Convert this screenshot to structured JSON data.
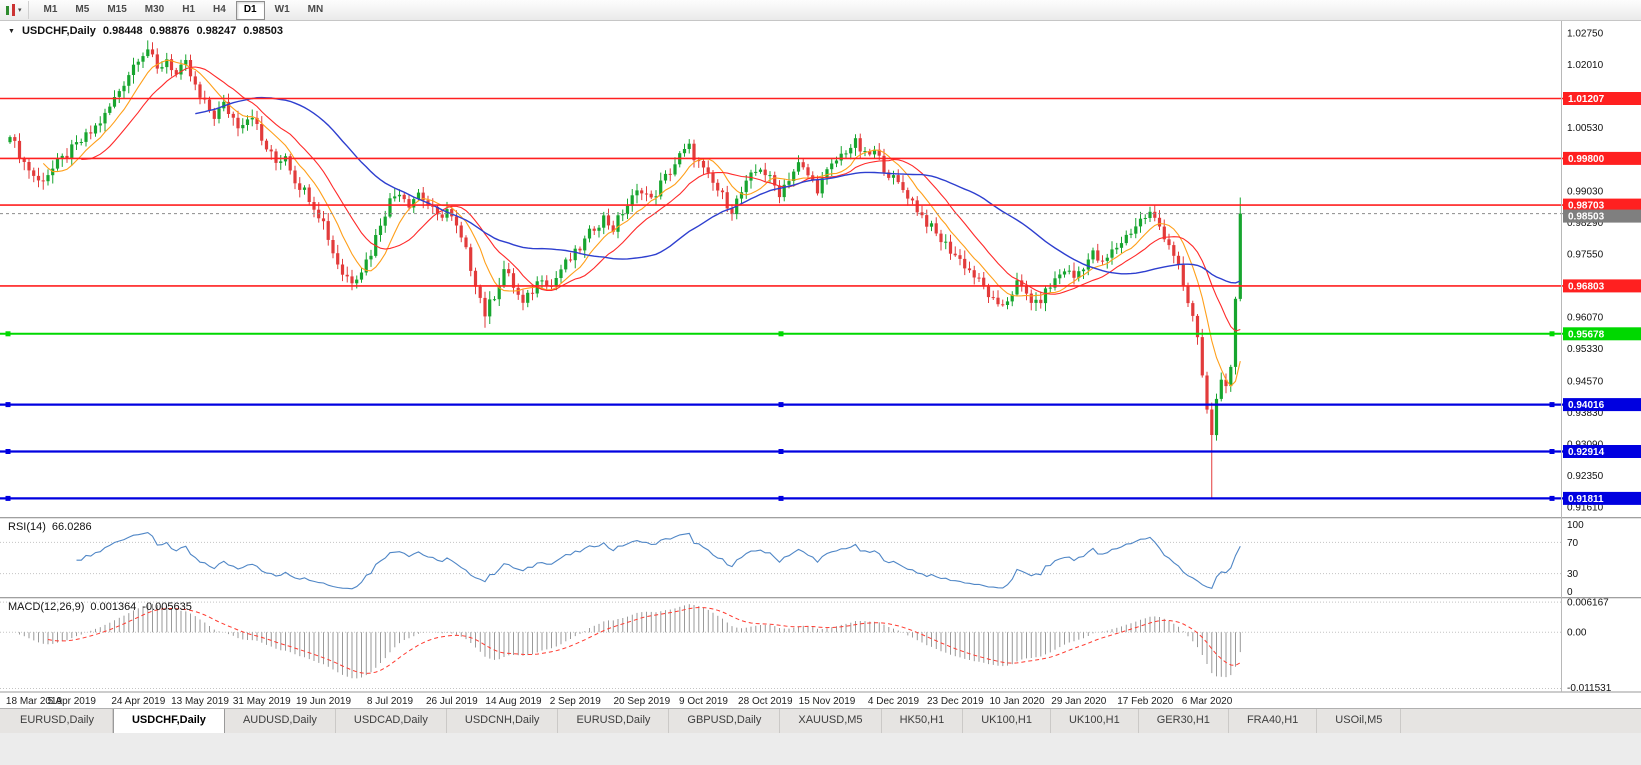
{
  "colors": {
    "bull": "#17a52f",
    "bear": "#e23b3b",
    "ma_fast": "#ff9f1a",
    "ma_mid": "#ff2a2a",
    "ma_slow": "#2e3fcf",
    "hline_red": "#ff2020",
    "hline_green": "#00d800",
    "hline_blue": "#0000e0",
    "rsi_line": "#4f86c6",
    "macd_hist": "#9a9a9a",
    "macd_signal": "#ff3b30",
    "current_price_badge": "#7f7f7f"
  },
  "toolbar": {
    "timeframes": [
      "M1",
      "M5",
      "M15",
      "M30",
      "H1",
      "H4",
      "D1",
      "W1",
      "MN"
    ],
    "active_timeframe": "D1"
  },
  "price_pane": {
    "symbol_title": "USDCHF,Daily",
    "open": "0.98448",
    "high": "0.98876",
    "low": "0.98247",
    "close": "0.98503",
    "current_price_label": "0.98503",
    "axis_tick_labels": [
      "1.02750",
      "1.02010",
      "1.00530",
      "0.99030",
      "0.98290",
      "0.97550",
      "0.96070",
      "0.95330",
      "0.94570",
      "0.93830",
      "0.93090",
      "0.92350",
      "0.91610"
    ]
  },
  "rsi_pane": {
    "name": "RSI(14)",
    "value": "66.0286",
    "axis_labels": [
      "100",
      "70",
      "30",
      "0"
    ],
    "levels": [
      70,
      30
    ]
  },
  "macd_pane": {
    "name": "MACD(12,26,9)",
    "value_main": "0.001364",
    "value_signal": "-0.005635",
    "axis_labels": [
      "0.006167",
      "0.00",
      "-0.011531"
    ]
  },
  "date_axis": [
    "18 Mar 2019",
    "5 Apr 2019",
    "24 Apr 2019",
    "13 May 2019",
    "31 May 2019",
    "19 Jun 2019",
    "8 Jul 2019",
    "26 Jul 2019",
    "14 Aug 2019",
    "2 Sep 2019",
    "20 Sep 2019",
    "9 Oct 2019",
    "28 Oct 2019",
    "15 Nov 2019",
    "4 Dec 2019",
    "23 Dec 2019",
    "10 Jan 2020",
    "29 Jan 2020",
    "17 Feb 2020",
    "6 Mar 2020"
  ],
  "tabs": {
    "active_index": 1,
    "items": [
      "EURUSD,Daily",
      "USDCHF,Daily",
      "AUDUSD,Daily",
      "USDCAD,Daily",
      "USDCNH,Daily",
      "EURUSD,Daily",
      "GBPUSD,Daily",
      "XAUUSD,M5",
      "HK50,H1",
      "UK100,H1",
      "UK100,H1",
      "GER30,H1",
      "FRA40,H1",
      "USOil,M5"
    ]
  },
  "chart_data": {
    "type": "candlestick",
    "title": "USDCHF,Daily",
    "y_min": 0.91375,
    "y_max": 1.0305,
    "num_candles": 260,
    "close_waypoints": [
      [
        0,
        1.003
      ],
      [
        3,
        0.997
      ],
      [
        6,
        0.9925
      ],
      [
        9,
        0.9955
      ],
      [
        13,
        1.0
      ],
      [
        17,
        1.004
      ],
      [
        20,
        1.008
      ],
      [
        23,
        1.014
      ],
      [
        27,
        1.022
      ],
      [
        29,
        1.0238
      ],
      [
        31,
        1.0185
      ],
      [
        33,
        1.0215
      ],
      [
        35,
        1.0175
      ],
      [
        37,
        1.02
      ],
      [
        40,
        1.012
      ],
      [
        43,
        1.008
      ],
      [
        45,
        1.0105
      ],
      [
        48,
        1.006
      ],
      [
        51,
        1.0085
      ],
      [
        53,
        1.002
      ],
      [
        56,
        0.997
      ],
      [
        58,
        0.999
      ],
      [
        60,
        0.993
      ],
      [
        63,
        0.989
      ],
      [
        66,
        0.983
      ],
      [
        68,
        0.976
      ],
      [
        70,
        0.971
      ],
      [
        72,
        0.9695
      ],
      [
        74,
        0.972
      ],
      [
        76,
        0.976
      ],
      [
        78,
        0.983
      ],
      [
        80,
        0.988
      ],
      [
        82,
        0.9905
      ],
      [
        84,
        0.9875
      ],
      [
        86,
        0.99
      ],
      [
        88,
        0.987
      ],
      [
        90,
        0.984
      ],
      [
        92,
        0.986
      ],
      [
        94,
        0.9815
      ],
      [
        96,
        0.976
      ],
      [
        98,
        0.969
      ],
      [
        100,
        0.9615
      ],
      [
        102,
        0.966
      ],
      [
        104,
        0.972
      ],
      [
        106,
        0.968
      ],
      [
        108,
        0.9635
      ],
      [
        110,
        0.967
      ],
      [
        112,
        0.9705
      ],
      [
        114,
        0.968
      ],
      [
        116,
        0.972
      ],
      [
        119,
        0.9755
      ],
      [
        121,
        0.9785
      ],
      [
        123,
        0.982
      ],
      [
        125,
        0.984
      ],
      [
        127,
        0.9815
      ],
      [
        129,
        0.9855
      ],
      [
        131,
        0.9885
      ],
      [
        133,
        0.991
      ],
      [
        135,
        0.988
      ],
      [
        137,
        0.992
      ],
      [
        139,
        0.995
      ],
      [
        141,
        0.9985
      ],
      [
        143,
        1.0005
      ],
      [
        146,
        0.995
      ],
      [
        148,
        0.992
      ],
      [
        150,
        0.989
      ],
      [
        152,
        0.986
      ],
      [
        154,
        0.99
      ],
      [
        156,
        0.9935
      ],
      [
        158,
        0.996
      ],
      [
        160,
        0.993
      ],
      [
        162,
        0.99
      ],
      [
        164,
        0.9935
      ],
      [
        166,
        0.9965
      ],
      [
        168,
        0.994
      ],
      [
        170,
        0.991
      ],
      [
        172,
        0.9945
      ],
      [
        174,
        0.9975
      ],
      [
        176,
        1.0
      ],
      [
        178,
        1.0015
      ],
      [
        180,
        0.9985
      ],
      [
        182,
        0.9995
      ],
      [
        184,
        0.996
      ],
      [
        186,
        0.993
      ],
      [
        189,
        0.9895
      ],
      [
        192,
        0.9845
      ],
      [
        195,
        0.98
      ],
      [
        198,
        0.9765
      ],
      [
        201,
        0.973
      ],
      [
        204,
        0.969
      ],
      [
        206,
        0.966
      ],
      [
        208,
        0.9625
      ],
      [
        210,
        0.965
      ],
      [
        212,
        0.9685
      ],
      [
        214,
        0.966
      ],
      [
        216,
        0.9635
      ],
      [
        218,
        0.9665
      ],
      [
        220,
        0.9695
      ],
      [
        222,
        0.972
      ],
      [
        224,
        0.97
      ],
      [
        226,
        0.973
      ],
      [
        228,
        0.9755
      ],
      [
        230,
        0.973
      ],
      [
        232,
        0.976
      ],
      [
        234,
        0.9785
      ],
      [
        236,
        0.981
      ],
      [
        238,
        0.9835
      ],
      [
        240,
        0.985
      ],
      [
        242,
        0.982
      ],
      [
        244,
        0.978
      ],
      [
        246,
        0.973
      ],
      [
        247,
        0.968
      ],
      [
        248,
        0.964
      ],
      [
        249,
        0.961
      ],
      [
        250,
        0.956
      ],
      [
        251,
        0.947
      ],
      [
        252,
        0.939
      ],
      [
        253,
        0.933
      ],
      [
        254,
        0.9415
      ],
      [
        255,
        0.946
      ],
      [
        256,
        0.9445
      ],
      [
        257,
        0.949
      ],
      [
        258,
        0.965
      ],
      [
        259,
        0.98503
      ]
    ],
    "special_wicks": {
      "29": {
        "high": 1.0257
      },
      "100": {
        "low": 0.9582
      },
      "253": {
        "low": 0.9182
      },
      "259": {
        "high": 0.9888
      }
    },
    "last_ohlc": {
      "open": 0.98448,
      "high": 0.98876,
      "low": 0.98247,
      "close": 0.98503
    },
    "current_price": 0.98503,
    "moving_averages": [
      {
        "type": "sma",
        "period": 8,
        "color_key": "ma_fast"
      },
      {
        "type": "sma",
        "period": 16,
        "color_key": "ma_mid"
      },
      {
        "type": "sma",
        "period": 40,
        "color_key": "ma_slow"
      }
    ],
    "hlines": [
      {
        "value": 1.01207,
        "label": "1.01207",
        "color_key": "hline_red",
        "width": 1.6,
        "handles": false
      },
      {
        "value": 0.998,
        "label": "0.99800",
        "color_key": "hline_red",
        "width": 1.6,
        "handles": false
      },
      {
        "value": 0.98703,
        "label": "0.98703",
        "color_key": "hline_red",
        "width": 1.6,
        "handles": false
      },
      {
        "value": 0.96803,
        "label": "0.96803",
        "color_key": "hline_red",
        "width": 1.6,
        "handles": false
      },
      {
        "value": 0.95678,
        "label": "0.95678",
        "color_key": "hline_green",
        "width": 2,
        "handles": true
      },
      {
        "value": 0.94016,
        "label": "0.94016",
        "color_key": "hline_blue",
        "width": 2.2,
        "handles": true
      },
      {
        "value": 0.92914,
        "label": "0.92914",
        "color_key": "hline_blue",
        "width": 2.2,
        "handles": true
      },
      {
        "value": 0.91811,
        "label": "0.91811",
        "color_key": "hline_blue",
        "width": 2.2,
        "handles": true
      }
    ],
    "indicators": [
      {
        "name": "RSI",
        "period": 14,
        "current": 66.0286,
        "levels": [
          100,
          70,
          30,
          0
        ]
      },
      {
        "name": "MACD",
        "fast": 12,
        "slow": 26,
        "signal": 9,
        "current_main": 0.001364,
        "current_signal": -0.005635,
        "scale_max": 0.006167,
        "scale_min": -0.011531
      }
    ]
  }
}
